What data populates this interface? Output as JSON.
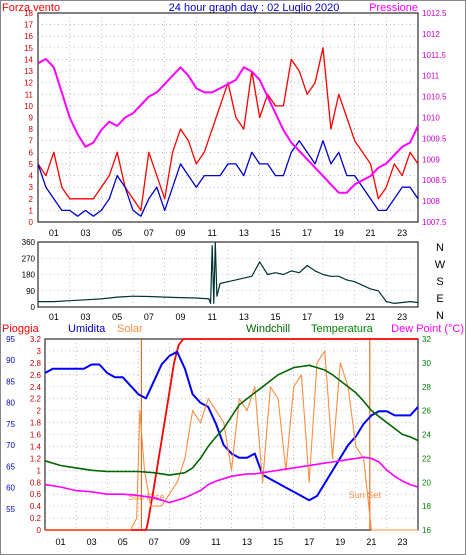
{
  "header": {
    "left_label": "Forza vento",
    "title": "24 hour graph day : 02 Luglio 2020",
    "right_label": "Pressione"
  },
  "legend_bottom": {
    "pioggia": "Pioggia",
    "umidita": "Umidita",
    "solar": "Solar",
    "windchill": "Windchill",
    "temperatura": "Temperatura",
    "dewpoint": "Dew Point (°C)"
  },
  "annotations": {
    "sunrise": "Sun Rise",
    "sunset": "Sun Set"
  },
  "colors": {
    "wind_gust": "#ff0000",
    "wind_avg": "#0000cc",
    "pressure": "#ff00ff",
    "direction": "#003333",
    "rain": "#ff0000",
    "humidity": "#0000ff",
    "solar": "#ff8c40",
    "windchill": "#006600",
    "temperature": "#008000",
    "dewpoint": "#ff00ff",
    "daylight": "#dd5500",
    "title": "#0000cc"
  },
  "chart_data": [
    {
      "type": "line",
      "name": "wind-pressure",
      "x_ticks": [
        "01",
        "03",
        "05",
        "07",
        "09",
        "11",
        "13",
        "15",
        "17",
        "19",
        "21",
        "23"
      ],
      "xlim": [
        0,
        24
      ],
      "y_left": {
        "label": "Forza vento",
        "range": [
          0,
          18
        ],
        "ticks": [
          0,
          1,
          2,
          3,
          4,
          5,
          6,
          7,
          8,
          9,
          10,
          11,
          12,
          13,
          14,
          15,
          16,
          17,
          18
        ]
      },
      "y_right": {
        "label": "Pressione",
        "range": [
          1007.5,
          1012.5
        ],
        "ticks": [
          "1007.5",
          "1008",
          "1008.5",
          "1009",
          "1009.5",
          "1010",
          "1010.5",
          "1011",
          "1011.5",
          "1012",
          "1012.5"
        ]
      },
      "series": [
        {
          "name": "Forza vento",
          "axis": "left",
          "color": "#ff0000",
          "x": [
            0,
            0.5,
            1,
            1.5,
            2,
            2.5,
            3,
            3.5,
            4,
            4.5,
            5,
            5.5,
            6,
            6.5,
            7,
            7.5,
            8,
            8.5,
            9,
            9.5,
            10,
            10.5,
            11,
            11.5,
            12,
            12.5,
            13,
            13.5,
            14,
            14.5,
            15,
            15.5,
            16,
            16.5,
            17,
            17.5,
            18,
            18.5,
            19,
            19.5,
            20,
            20.5,
            21,
            21.5,
            22,
            22.5,
            23,
            23.5,
            24
          ],
          "y": [
            5,
            4,
            6,
            3,
            2,
            2,
            2,
            2,
            3,
            4,
            6,
            3,
            2,
            1,
            6,
            4,
            2,
            6,
            8,
            7,
            5,
            6,
            8,
            10,
            12,
            9,
            8,
            13,
            9,
            11,
            10,
            10,
            14,
            13,
            11,
            12,
            15,
            8,
            11,
            9,
            7,
            6,
            5,
            2,
            3,
            5,
            4,
            6,
            5
          ]
        },
        {
          "name": "Wind average",
          "axis": "left",
          "color": "#0000cc",
          "x": [
            0,
            0.5,
            1,
            1.5,
            2,
            2.5,
            3,
            3.5,
            4,
            4.5,
            5,
            5.5,
            6,
            6.5,
            7,
            7.5,
            8,
            8.5,
            9,
            9.5,
            10,
            10.5,
            11,
            11.5,
            12,
            12.5,
            13,
            13.5,
            14,
            14.5,
            15,
            15.5,
            16,
            16.5,
            17,
            17.5,
            18,
            18.5,
            19,
            19.5,
            20,
            20.5,
            21,
            21.5,
            22,
            22.5,
            23,
            23.5,
            24
          ],
          "y": [
            5,
            3,
            2,
            1,
            1,
            0.5,
            1,
            0.5,
            1,
            2,
            4,
            3,
            1,
            0.5,
            2,
            3,
            1,
            3,
            5,
            4,
            3,
            4,
            4,
            4,
            5,
            5,
            4,
            6,
            5,
            5,
            4,
            4,
            6,
            7,
            6,
            5,
            7,
            5,
            6,
            4,
            4,
            3,
            2,
            1,
            1,
            2,
            3,
            3,
            2
          ]
        },
        {
          "name": "Pressione",
          "axis": "right",
          "color": "#ff00ff",
          "x": [
            0,
            0.5,
            1,
            1.5,
            2,
            2.5,
            3,
            3.5,
            4,
            4.5,
            5,
            5.5,
            6,
            6.5,
            7,
            7.5,
            8,
            8.5,
            9,
            9.5,
            10,
            10.5,
            11,
            11.5,
            12,
            12.5,
            13,
            13.5,
            14,
            14.5,
            15,
            15.5,
            16,
            16.5,
            17,
            17.5,
            18,
            18.5,
            19,
            19.5,
            20,
            20.5,
            21,
            21.5,
            22,
            22.5,
            23,
            23.5,
            24
          ],
          "y": [
            1011.3,
            1011.4,
            1011.2,
            1010.6,
            1010.0,
            1009.6,
            1009.3,
            1009.4,
            1009.7,
            1009.9,
            1009.8,
            1010.0,
            1010.1,
            1010.3,
            1010.5,
            1010.6,
            1010.8,
            1011.0,
            1011.2,
            1011.0,
            1010.7,
            1010.6,
            1010.6,
            1010.7,
            1010.8,
            1010.9,
            1011.2,
            1011.1,
            1010.9,
            1010.5,
            1010.1,
            1009.7,
            1009.4,
            1009.2,
            1009.0,
            1008.8,
            1008.6,
            1008.4,
            1008.2,
            1008.2,
            1008.4,
            1008.5,
            1008.6,
            1008.8,
            1008.9,
            1009.1,
            1009.3,
            1009.4,
            1009.8
          ]
        }
      ]
    },
    {
      "type": "line",
      "name": "wind-direction",
      "x_ticks": [
        "01",
        "03",
        "05",
        "07",
        "09",
        "11",
        "13",
        "15",
        "17",
        "19",
        "21",
        "23"
      ],
      "xlim": [
        0,
        24
      ],
      "y_left": {
        "range": [
          0,
          360
        ],
        "ticks": [
          0,
          90,
          180,
          270,
          360
        ]
      },
      "y_right": {
        "ticks": [
          "N",
          "W",
          "S",
          "E",
          "N"
        ]
      },
      "series": [
        {
          "name": "Direction",
          "color": "#003333",
          "x": [
            0,
            1,
            2,
            3,
            4,
            5,
            6,
            7,
            8,
            9,
            10,
            10.8,
            10.9,
            11,
            11.1,
            11.2,
            11.3,
            11.5,
            12,
            12.5,
            13,
            13.5,
            14,
            14.5,
            15,
            15.5,
            16,
            16.5,
            17,
            17.5,
            18,
            18.5,
            19,
            19.5,
            20,
            20.5,
            21,
            21.5,
            22,
            22.5,
            23,
            23.5,
            24
          ],
          "y": [
            30,
            30,
            35,
            40,
            45,
            55,
            60,
            58,
            55,
            52,
            50,
            45,
            20,
            340,
            20,
            360,
            60,
            130,
            140,
            150,
            160,
            170,
            250,
            180,
            190,
            180,
            200,
            190,
            230,
            200,
            180,
            170,
            170,
            150,
            140,
            120,
            100,
            90,
            30,
            20,
            25,
            30,
            25
          ]
        }
      ]
    },
    {
      "type": "line",
      "name": "humidity-temperature",
      "x_ticks": [
        "01",
        "03",
        "05",
        "07",
        "09",
        "11",
        "13",
        "15",
        "17",
        "19",
        "21",
        "23"
      ],
      "xlim": [
        0,
        24
      ],
      "y_humidity": {
        "label": "Umidita",
        "range": [
          50,
          95
        ],
        "ticks": [
          55,
          60,
          65,
          70,
          75,
          80,
          85,
          90,
          95
        ]
      },
      "y_rain": {
        "label": "Pioggia",
        "range": [
          0,
          3.2
        ],
        "ticks": [
          "0",
          "0.2",
          "0.4",
          "0.6",
          "0.8",
          "1",
          "1.2",
          "1.4",
          "1.6",
          "1.8",
          "2",
          "2.2",
          "2.4",
          "2.6",
          "2.8",
          "3",
          "3.2"
        ]
      },
      "y_temp": {
        "label": "Dew Point (°C)",
        "range": [
          16,
          32
        ],
        "ticks": [
          16,
          18,
          20,
          22,
          24,
          26,
          28,
          30,
          32
        ]
      },
      "daylight": {
        "sunrise": 6.2,
        "sunset": 20.9
      },
      "series": [
        {
          "name": "Pioggia",
          "axis": "rain",
          "color": "#ff0000",
          "x": [
            0,
            6.5,
            6.6,
            7,
            7.5,
            8,
            8.3,
            8.6,
            8.9,
            24
          ],
          "y": [
            0,
            0,
            0.1,
            0.7,
            1.5,
            2.3,
            2.8,
            3.1,
            3.2,
            3.2
          ]
        },
        {
          "name": "Umidita",
          "axis": "humidity",
          "color": "#0000ff",
          "x": [
            0,
            0.5,
            1,
            1.5,
            2,
            2.5,
            3,
            3.5,
            4,
            4.5,
            5,
            5.5,
            6,
            6.5,
            7,
            7.5,
            8,
            8.5,
            9,
            9.5,
            10,
            10.5,
            11,
            11.5,
            12,
            12.5,
            13,
            13.5,
            14,
            14.5,
            15,
            15.5,
            16,
            16.5,
            17,
            17.5,
            18,
            18.5,
            19,
            19.5,
            20,
            20.5,
            21,
            21.5,
            22,
            22.5,
            23,
            23.5,
            24
          ],
          "y": [
            87,
            88,
            88,
            88,
            88,
            88,
            89,
            89,
            87,
            86,
            86,
            84,
            82,
            81,
            85,
            89,
            91,
            92,
            88,
            82,
            80,
            79,
            75,
            70,
            68,
            67,
            67,
            68,
            63,
            62,
            61,
            60,
            59,
            58,
            57,
            58,
            61,
            64,
            67,
            70,
            72,
            75,
            77,
            78,
            78,
            77,
            77,
            77,
            79
          ]
        },
        {
          "name": "Solar",
          "axis": "temp",
          "color": "#ff8c40",
          "x": [
            0,
            5.5,
            5.9,
            6.1,
            6.4,
            6.8,
            7.5,
            8,
            8.5,
            9,
            9.5,
            10,
            10.5,
            11,
            11.5,
            12,
            12.5,
            13,
            13.5,
            14,
            14.5,
            15,
            15.5,
            16,
            16.5,
            17,
            17.5,
            18,
            18.5,
            19,
            19.5,
            20,
            20.5,
            21,
            21.5,
            24
          ],
          "y": [
            16,
            16,
            17,
            26,
            21,
            18,
            18,
            19,
            20,
            22,
            26,
            25,
            27,
            26,
            25,
            21,
            27,
            26,
            28,
            20,
            28,
            27,
            21,
            28,
            29,
            20,
            30,
            31,
            22,
            30,
            28,
            23,
            22,
            16,
            16,
            16
          ]
        },
        {
          "name": "Windchill",
          "axis": "temp",
          "color": "#006600",
          "x": [
            0,
            1,
            2,
            3,
            4,
            5,
            6,
            7,
            8,
            8.5,
            9,
            9.5,
            10,
            10.5,
            11,
            11.5,
            12,
            12.5,
            13,
            13.5,
            14,
            14.5,
            15,
            15.5,
            16,
            16.5,
            17,
            17.5,
            18,
            18.5,
            19,
            19.5,
            20,
            20.5,
            21,
            21.5,
            22,
            22.5,
            23,
            23.5,
            24
          ],
          "y": [
            21.8,
            21.4,
            21.2,
            21.0,
            20.9,
            20.9,
            20.9,
            20.8,
            20.6,
            20.7,
            20.8,
            21.2,
            22.0,
            23.0,
            23.8,
            24.5,
            25.5,
            26.5,
            27.0,
            27.5,
            28.0,
            28.5,
            29.0,
            29.3,
            29.6,
            29.7,
            29.8,
            29.6,
            29.4,
            29.0,
            28.5,
            28.0,
            27.5,
            26.8,
            26.0,
            25.5,
            25.0,
            24.5,
            24.0,
            23.8,
            23.5
          ]
        },
        {
          "name": "Dew Point (°C)",
          "axis": "temp",
          "color": "#ff00ff",
          "x": [
            0,
            1,
            2,
            3,
            4,
            5,
            6,
            7,
            8,
            8.5,
            9,
            9.5,
            10,
            10.5,
            11,
            11.5,
            12,
            12.5,
            13,
            13.5,
            14,
            14.5,
            15,
            15.5,
            16,
            16.5,
            17,
            17.5,
            18,
            18.5,
            19,
            19.5,
            20,
            20.5,
            21,
            21.5,
            22,
            22.5,
            23,
            23.5,
            24
          ],
          "y": [
            19.8,
            19.6,
            19.3,
            19.2,
            19.0,
            19.0,
            18.9,
            18.7,
            18.3,
            18.5,
            18.7,
            19.0,
            19.3,
            19.8,
            20.1,
            20.3,
            20.5,
            20.6,
            20.7,
            20.7,
            20.8,
            20.9,
            21.0,
            21.1,
            21.2,
            21.3,
            21.4,
            21.5,
            21.6,
            21.7,
            21.8,
            21.9,
            22.0,
            22.1,
            22.0,
            21.7,
            21.0,
            20.5,
            20.1,
            19.8,
            19.6
          ]
        }
      ]
    }
  ]
}
